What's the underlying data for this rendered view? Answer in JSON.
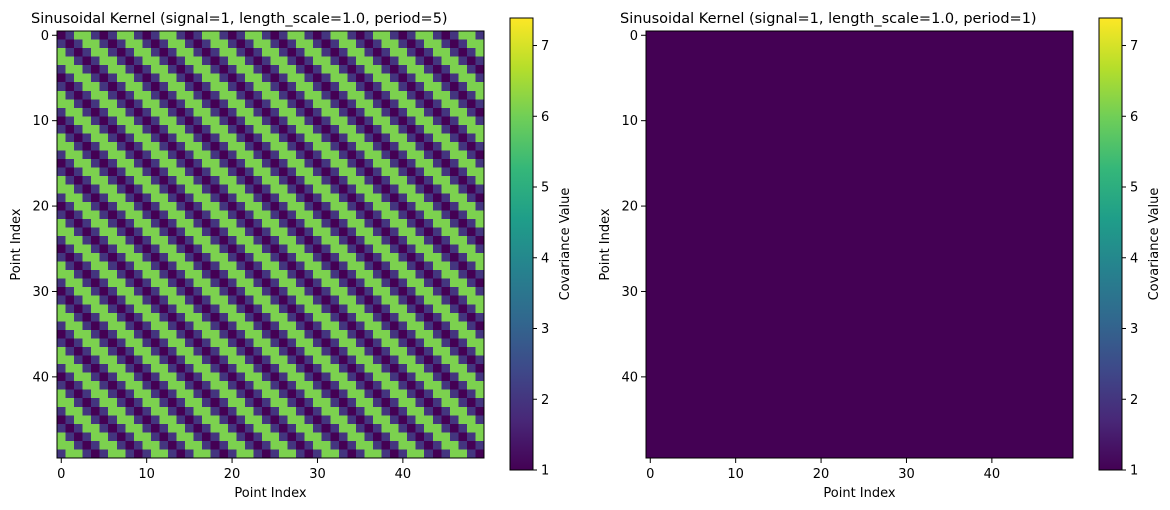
{
  "colors": {
    "viridis": [
      "#440154",
      "#482878",
      "#3e4989",
      "#31688e",
      "#26828e",
      "#1f9e89",
      "#35b779",
      "#6ece58",
      "#b5de2b",
      "#fde725"
    ]
  },
  "chart_data": [
    {
      "type": "heatmap",
      "title": "Sinusoidal Kernel (signal=1, length_scale=1.0, period=5)",
      "xlabel": "Point Index",
      "ylabel": "Point Index",
      "n": 50,
      "xticks": [
        0,
        10,
        20,
        30,
        40
      ],
      "yticks": [
        0,
        10,
        20,
        30,
        40
      ],
      "kernel": {
        "signal": 1,
        "length_scale": 1.0,
        "period": 5
      },
      "colorbar": {
        "label": "Covariance Value",
        "vmin": 1,
        "vmax": 7.389,
        "ticks": [
          1,
          2,
          3,
          4,
          5,
          6,
          7
        ]
      },
      "cmap": "viridis"
    },
    {
      "type": "heatmap",
      "title": "Sinusoidal Kernel (signal=1, length_scale=1.0, period=1)",
      "xlabel": "Point Index",
      "ylabel": "Point Index",
      "n": 50,
      "xticks": [
        0,
        10,
        20,
        30,
        40
      ],
      "yticks": [
        0,
        10,
        20,
        30,
        40
      ],
      "kernel": {
        "signal": 1,
        "length_scale": 1.0,
        "period": 1
      },
      "colorbar": {
        "label": "Covariance Value",
        "vmin": 1,
        "vmax": 7.389,
        "ticks": [
          1,
          2,
          3,
          4,
          5,
          6,
          7
        ]
      },
      "cmap": "viridis"
    }
  ]
}
